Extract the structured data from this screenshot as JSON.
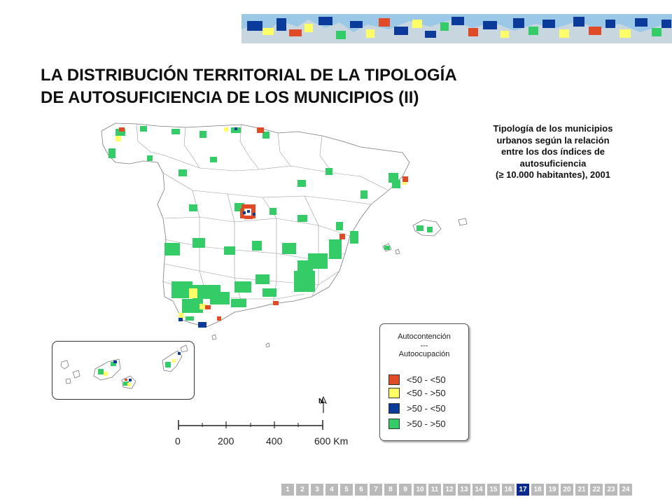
{
  "title": {
    "line1": "LA DISTRIBUCIÓN TERRITORIAL DE LA TIPOLOGÍA",
    "line2": "DE AUTOSUFICIENCIA DE LOS MUNICIPIOS (II)"
  },
  "map_caption": {
    "lines": [
      "Tipología de los municipios",
      "urbanos según la relación",
      "entre los dos índices de",
      "autosuficiencia",
      "(≥ 10.000 habitantes), 2001"
    ]
  },
  "legend": {
    "title_line1": "Autocontención",
    "title_line2": "---",
    "title_line3": "Autoocupación",
    "items": [
      {
        "label": "<50 - <50",
        "color": "#e04a26"
      },
      {
        "label": "<50 - >50",
        "color": "#ffff66"
      },
      {
        "label": ">50 - <50",
        "color": "#0a3a9a"
      },
      {
        "label": ">50 - >50",
        "color": "#33cc66"
      }
    ]
  },
  "north_arrow": {
    "label": "N"
  },
  "scale_bar": {
    "labels": [
      "0",
      "200",
      "400",
      "600 Km"
    ]
  },
  "colors": {
    "outline": "#7a7a7a",
    "sea_banner": "#9bc8e6",
    "active_page": "#0a2a8c",
    "inactive_page": "#b9b9b9"
  },
  "pager": {
    "pages": [
      "1",
      "2",
      "3",
      "4",
      "5",
      "6",
      "7",
      "8",
      "9",
      "10",
      "11",
      "12",
      "13",
      "14",
      "15",
      "16",
      "17",
      "18",
      "19",
      "20",
      "21",
      "22",
      "23",
      "24"
    ],
    "current": "17"
  }
}
